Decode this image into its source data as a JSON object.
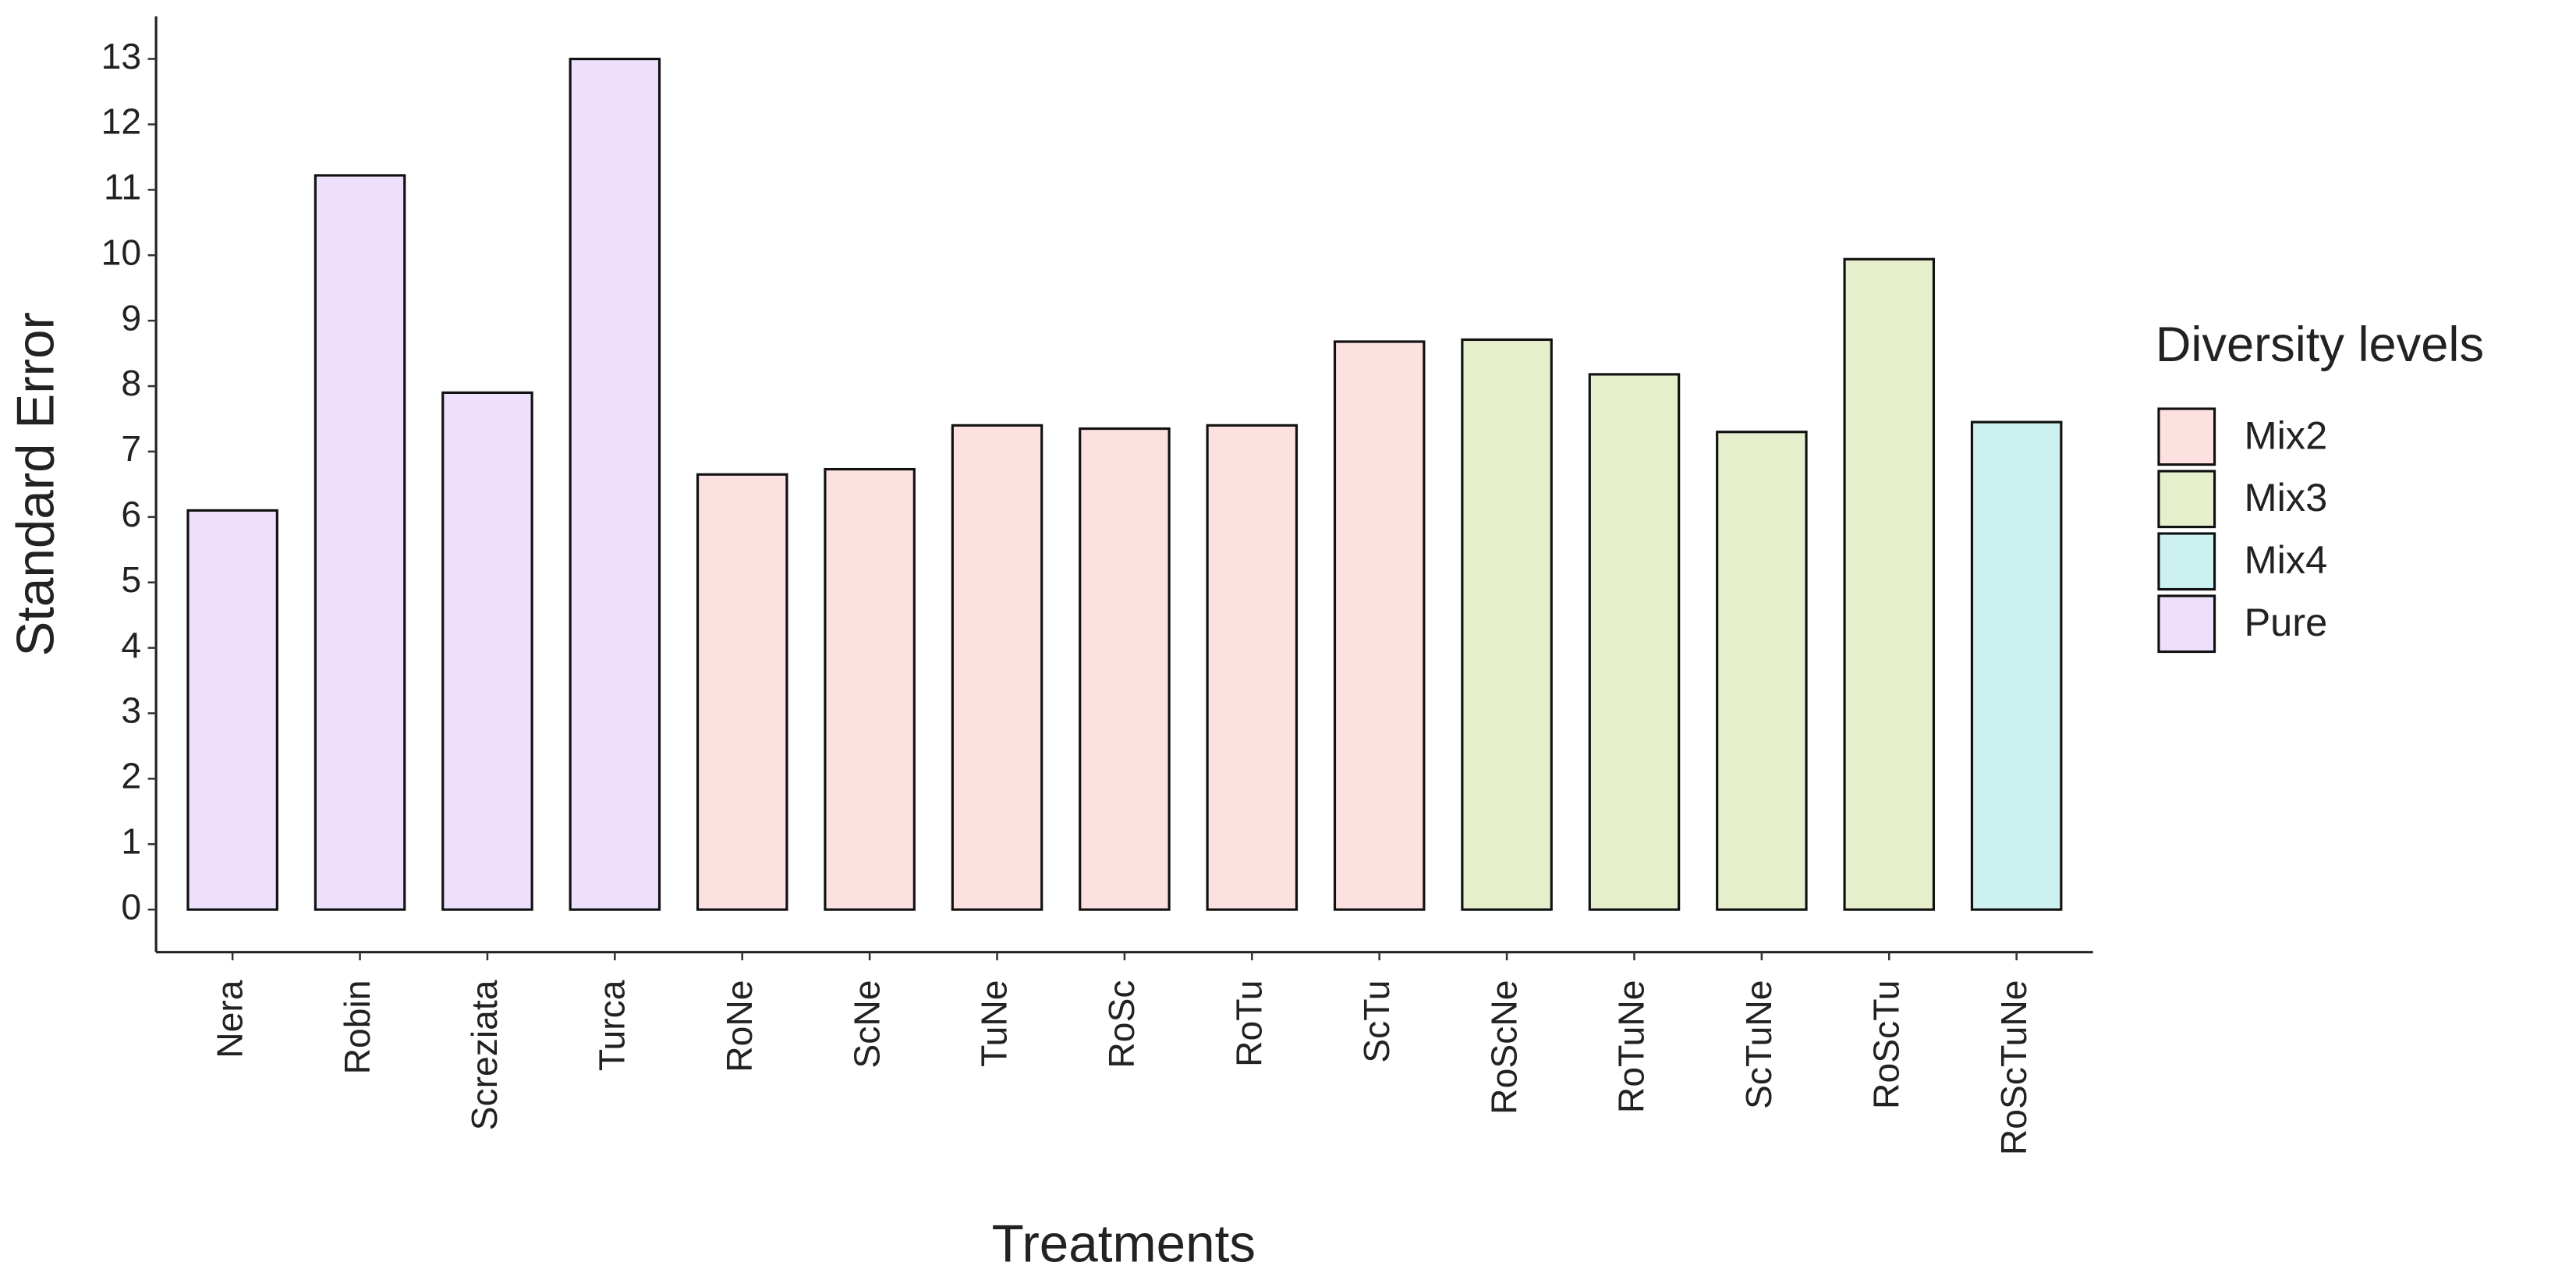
{
  "chart_data": {
    "type": "bar",
    "y_label": "Standard Error",
    "x_label": "Treatments",
    "legend_title": "Diversity levels",
    "categories": [
      "Nera",
      "Robin",
      "Screziata",
      "Turca",
      "RoNe",
      "ScNe",
      "TuNe",
      "RoSc",
      "RoTu",
      "ScTu",
      "RoScNe",
      "RoTuNe",
      "ScTuNe",
      "RoScTu",
      "RoScTuNe"
    ],
    "series": [
      {
        "name": "Mix2",
        "color": "#fde0e0",
        "values": [
          null,
          null,
          null,
          null,
          6.65,
          6.73,
          7.4,
          7.35,
          7.4,
          8.68,
          null,
          null,
          null,
          null,
          null
        ]
      },
      {
        "name": "Mix3",
        "color": "#e5efcc",
        "values": [
          null,
          null,
          null,
          null,
          null,
          null,
          null,
          null,
          null,
          null,
          8.71,
          8.18,
          7.3,
          9.94,
          null
        ]
      },
      {
        "name": "Mix4",
        "color": "#cdf0f0",
        "values": [
          null,
          null,
          null,
          null,
          null,
          null,
          null,
          null,
          null,
          null,
          null,
          null,
          null,
          null,
          7.45
        ]
      },
      {
        "name": "Pure",
        "color": "#eee0fc",
        "values": [
          6.1,
          11.22,
          7.9,
          13,
          null,
          null,
          null,
          null,
          null,
          null,
          null,
          null,
          null,
          null,
          null
        ]
      }
    ],
    "ylim": [
      -0.65,
      13.65
    ],
    "yticks": [
      0,
      1,
      2,
      3,
      4,
      5,
      6,
      7,
      8,
      9,
      10,
      11,
      12,
      13
    ],
    "legend": "right"
  }
}
